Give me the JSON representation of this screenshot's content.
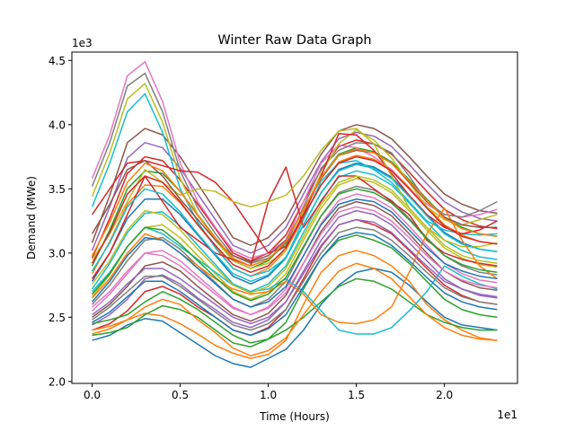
{
  "chart_data": {
    "type": "line",
    "title": "Winter Raw Data Graph",
    "xlabel": "Time (Hours)",
    "ylabel": "Demand (MWe)",
    "x_offset_label": "1e1",
    "y_offset_label": "1e3",
    "xlim": [
      -1.15,
      24.15
    ],
    "ylim": [
      1.985,
      4.565
    ],
    "x_ticks": [
      {
        "value": 0.0,
        "label": "0.0"
      },
      {
        "value": 5.0,
        "label": "0.5"
      },
      {
        "value": 10.0,
        "label": "1.0"
      },
      {
        "value": 15.0,
        "label": "1.5"
      },
      {
        "value": 20.0,
        "label": "2.0"
      }
    ],
    "y_ticks": [
      {
        "value": 2.0,
        "label": "2.0"
      },
      {
        "value": 2.5,
        "label": "2.5"
      },
      {
        "value": 3.0,
        "label": "3.0"
      },
      {
        "value": 3.5,
        "label": "3.5"
      },
      {
        "value": 4.0,
        "label": "4.0"
      },
      {
        "value": 4.5,
        "label": "4.5"
      }
    ],
    "grid": false,
    "legend": "none",
    "x": [
      0,
      1,
      2,
      3,
      4,
      5,
      6,
      7,
      8,
      9,
      10,
      11,
      12,
      13,
      14,
      15,
      16,
      17,
      18,
      19,
      20,
      21,
      22,
      23
    ],
    "series": [
      {
        "color": "#1f77b4",
        "values": [
          2.32,
          2.36,
          2.44,
          2.49,
          2.47,
          2.38,
          2.29,
          2.2,
          2.14,
          2.11,
          2.18,
          2.25,
          2.4,
          2.6,
          2.75,
          2.85,
          2.88,
          2.85,
          2.75,
          2.62,
          2.5,
          2.44,
          2.42,
          2.4
        ]
      },
      {
        "color": "#ff7f0e",
        "values": [
          2.37,
          2.41,
          2.48,
          2.53,
          2.51,
          2.45,
          2.37,
          2.28,
          2.22,
          2.18,
          2.21,
          2.32,
          2.6,
          2.85,
          2.98,
          3.02,
          2.98,
          2.9,
          2.78,
          2.6,
          2.48,
          2.4,
          2.34,
          2.32
        ]
      },
      {
        "color": "#2ca02c",
        "values": [
          2.36,
          2.38,
          2.42,
          2.52,
          2.59,
          2.56,
          2.5,
          2.4,
          2.3,
          2.27,
          2.33,
          2.46,
          2.72,
          2.96,
          3.1,
          3.14,
          3.1,
          3.04,
          2.92,
          2.78,
          2.64,
          2.56,
          2.52,
          2.5
        ]
      },
      {
        "color": "#d62728",
        "values": [
          2.4,
          2.45,
          2.55,
          2.7,
          2.74,
          2.68,
          2.58,
          2.5,
          2.4,
          2.36,
          2.42,
          2.56,
          2.8,
          3.05,
          3.22,
          3.26,
          3.22,
          3.15,
          3.02,
          2.88,
          2.75,
          2.67,
          2.62,
          2.6
        ]
      },
      {
        "color": "#9467bd",
        "values": [
          2.44,
          2.52,
          2.64,
          2.8,
          2.83,
          2.76,
          2.65,
          2.56,
          2.46,
          2.42,
          2.48,
          2.62,
          2.86,
          3.1,
          3.28,
          3.33,
          3.3,
          3.22,
          3.08,
          2.94,
          2.8,
          2.72,
          2.67,
          2.65
        ]
      },
      {
        "color": "#8c564b",
        "values": [
          2.5,
          2.6,
          2.74,
          2.9,
          2.93,
          2.86,
          2.74,
          2.63,
          2.52,
          2.47,
          2.53,
          2.67,
          2.92,
          3.17,
          3.35,
          3.4,
          3.37,
          3.29,
          3.15,
          3.0,
          2.86,
          2.78,
          2.73,
          2.71
        ]
      },
      {
        "color": "#e377c2",
        "values": [
          2.55,
          2.68,
          2.84,
          3.0,
          3.02,
          2.94,
          2.82,
          2.7,
          2.58,
          2.52,
          2.58,
          2.72,
          2.98,
          3.23,
          3.41,
          3.46,
          3.43,
          3.35,
          3.21,
          3.06,
          2.92,
          2.84,
          2.79,
          2.77
        ]
      },
      {
        "color": "#7f7f7f",
        "values": [
          2.6,
          2.75,
          2.94,
          3.1,
          3.12,
          3.03,
          2.9,
          2.77,
          2.64,
          2.58,
          2.64,
          2.78,
          3.04,
          3.29,
          3.47,
          3.52,
          3.49,
          3.41,
          3.27,
          3.12,
          2.98,
          2.9,
          2.85,
          2.83
        ]
      },
      {
        "color": "#bcbd22",
        "values": [
          2.66,
          2.83,
          3.05,
          3.2,
          3.22,
          3.12,
          2.98,
          2.84,
          2.7,
          2.64,
          2.7,
          2.84,
          3.1,
          3.35,
          3.53,
          3.58,
          3.55,
          3.47,
          3.33,
          3.18,
          3.04,
          2.96,
          2.91,
          2.89
        ]
      },
      {
        "color": "#17becf",
        "values": [
          2.72,
          2.92,
          3.16,
          3.31,
          3.32,
          3.21,
          3.06,
          2.91,
          2.76,
          2.7,
          2.76,
          2.9,
          3.16,
          3.41,
          3.59,
          3.64,
          3.61,
          3.53,
          3.39,
          3.24,
          3.1,
          3.02,
          2.97,
          2.95
        ]
      },
      {
        "color": "#1f77b4",
        "values": [
          2.78,
          3.0,
          3.27,
          3.42,
          3.42,
          3.3,
          3.14,
          2.98,
          2.82,
          2.76,
          2.82,
          2.96,
          3.22,
          3.47,
          3.65,
          3.7,
          3.67,
          3.59,
          3.45,
          3.3,
          3.16,
          3.08,
          3.03,
          3.01
        ]
      },
      {
        "color": "#ff7f0e",
        "values": [
          2.84,
          3.09,
          3.38,
          3.53,
          3.52,
          3.39,
          3.22,
          3.05,
          2.88,
          2.82,
          2.88,
          3.02,
          3.28,
          3.53,
          3.71,
          3.76,
          3.73,
          3.65,
          3.51,
          3.36,
          3.22,
          3.14,
          3.09,
          3.07
        ]
      },
      {
        "color": "#2ca02c",
        "values": [
          2.9,
          3.18,
          3.5,
          3.64,
          3.62,
          3.48,
          3.3,
          3.12,
          2.94,
          2.88,
          2.94,
          3.08,
          3.34,
          3.59,
          3.77,
          3.82,
          3.79,
          3.71,
          3.57,
          3.42,
          3.28,
          3.2,
          3.15,
          3.13
        ]
      },
      {
        "color": "#d62728",
        "values": [
          2.96,
          3.27,
          3.62,
          3.75,
          3.72,
          3.57,
          3.38,
          3.19,
          3.0,
          2.94,
          3.0,
          3.14,
          3.4,
          3.65,
          3.83,
          3.88,
          3.85,
          3.77,
          3.63,
          3.48,
          3.34,
          3.26,
          3.21,
          3.19
        ]
      },
      {
        "color": "#9467bd",
        "values": [
          3.02,
          3.36,
          3.74,
          3.86,
          3.82,
          3.66,
          3.46,
          3.26,
          3.06,
          3.0,
          3.06,
          3.2,
          3.46,
          3.71,
          3.89,
          3.94,
          3.91,
          3.83,
          3.69,
          3.54,
          3.4,
          3.32,
          3.27,
          3.25
        ]
      },
      {
        "color": "#8c564b",
        "values": [
          3.08,
          3.45,
          3.86,
          3.97,
          3.92,
          3.75,
          3.54,
          3.33,
          3.12,
          3.06,
          3.12,
          3.26,
          3.52,
          3.77,
          3.95,
          4.0,
          3.97,
          3.89,
          3.75,
          3.6,
          3.46,
          3.38,
          3.33,
          3.31
        ]
      },
      {
        "color": "#e377c2",
        "values": [
          3.58,
          3.92,
          4.38,
          4.49,
          4.18,
          3.7,
          3.4,
          3.2,
          3.02,
          2.96,
          3.0,
          3.1,
          3.4,
          3.7,
          3.84,
          3.82,
          3.75,
          3.65,
          3.5,
          3.38,
          3.3,
          3.28,
          3.3,
          3.34
        ]
      },
      {
        "color": "#7f7f7f",
        "values": [
          3.52,
          3.86,
          4.3,
          4.4,
          4.1,
          3.64,
          3.35,
          3.15,
          2.98,
          2.92,
          2.96,
          3.06,
          3.36,
          3.66,
          3.8,
          3.86,
          3.85,
          3.78,
          3.6,
          3.4,
          3.3,
          3.28,
          3.33,
          3.4
        ]
      },
      {
        "color": "#bcbd22",
        "values": [
          3.44,
          3.78,
          4.2,
          4.32,
          4.02,
          3.58,
          3.3,
          3.1,
          2.94,
          2.88,
          2.92,
          3.02,
          3.32,
          3.62,
          3.85,
          3.96,
          3.88,
          3.74,
          3.55,
          3.36,
          3.26,
          3.22,
          3.26,
          3.3
        ]
      },
      {
        "color": "#17becf",
        "values": [
          3.36,
          3.7,
          4.1,
          4.24,
          3.94,
          3.5,
          3.24,
          3.04,
          2.88,
          2.82,
          2.86,
          2.96,
          3.26,
          3.56,
          3.7,
          3.72,
          3.65,
          3.55,
          3.4,
          3.25,
          3.18,
          3.15,
          3.14,
          3.15
        ]
      },
      {
        "color": "#d62728",
        "values": [
          3.3,
          3.5,
          3.7,
          3.72,
          3.68,
          3.64,
          3.63,
          3.55,
          3.4,
          3.2,
          3.0,
          3.05,
          3.3,
          3.6,
          3.93,
          3.92,
          3.8,
          3.62,
          3.45,
          3.3,
          3.2,
          3.15,
          3.18,
          3.25
        ]
      },
      {
        "color": "#d62728",
        "values": [
          2.8,
          3.0,
          3.3,
          3.6,
          3.4,
          3.2,
          3.1,
          3.0,
          2.95,
          2.9,
          3.4,
          3.67,
          3.2,
          3.4,
          3.6,
          3.6,
          3.5,
          3.4,
          3.3,
          3.1,
          3.0,
          2.95,
          2.92,
          2.9
        ]
      },
      {
        "color": "#bcbd22",
        "values": [
          2.95,
          3.15,
          3.4,
          3.65,
          3.55,
          3.45,
          3.5,
          3.48,
          3.4,
          3.36,
          3.4,
          3.45,
          3.6,
          3.8,
          3.95,
          3.97,
          3.85,
          3.6,
          3.35,
          3.2,
          3.1,
          3.05,
          3.05,
          3.08
        ]
      },
      {
        "color": "#2ca02c",
        "values": [
          2.45,
          2.48,
          2.52,
          2.62,
          2.7,
          2.64,
          2.56,
          2.46,
          2.36,
          2.3,
          2.33,
          2.4,
          2.5,
          2.62,
          2.74,
          2.8,
          2.78,
          2.72,
          2.62,
          2.52,
          2.46,
          2.42,
          2.4,
          2.4
        ]
      },
      {
        "color": "#ff7f0e",
        "values": [
          2.4,
          2.43,
          2.48,
          2.58,
          2.64,
          2.6,
          2.48,
          2.38,
          2.26,
          2.2,
          2.24,
          2.34,
          2.52,
          2.7,
          2.86,
          2.92,
          2.88,
          2.8,
          2.66,
          2.52,
          2.42,
          2.36,
          2.33,
          2.32
        ]
      },
      {
        "color": "#17becf",
        "values": [
          2.7,
          2.85,
          3.05,
          3.2,
          3.15,
          3.05,
          2.95,
          2.85,
          2.75,
          2.7,
          2.72,
          2.8,
          2.7,
          2.55,
          2.4,
          2.37,
          2.37,
          2.42,
          2.55,
          2.7,
          2.9,
          2.82,
          2.76,
          2.72
        ]
      },
      {
        "color": "#ff7f0e",
        "values": [
          2.65,
          2.8,
          3.0,
          3.15,
          3.1,
          3.0,
          2.9,
          2.8,
          2.72,
          2.68,
          2.7,
          2.78,
          2.68,
          2.52,
          2.46,
          2.45,
          2.48,
          2.58,
          2.85,
          3.15,
          3.35,
          3.1,
          2.9,
          2.8
        ]
      },
      {
        "color": "#8c564b",
        "values": [
          3.15,
          3.38,
          3.65,
          3.72,
          3.6,
          3.42,
          3.26,
          3.1,
          2.98,
          2.93,
          2.98,
          3.1,
          3.34,
          3.58,
          3.76,
          3.8,
          3.78,
          3.7,
          3.55,
          3.4,
          3.28,
          3.22,
          3.2,
          3.2
        ]
      },
      {
        "color": "#1f77b4",
        "values": [
          2.62,
          2.78,
          2.98,
          3.12,
          3.1,
          3.0,
          2.88,
          2.76,
          2.64,
          2.58,
          2.62,
          2.74,
          2.98,
          3.22,
          3.38,
          3.42,
          3.4,
          3.32,
          3.18,
          3.04,
          2.92,
          2.86,
          2.82,
          2.8
        ]
      },
      {
        "color": "#9467bd",
        "values": [
          2.52,
          2.62,
          2.76,
          2.88,
          2.88,
          2.8,
          2.7,
          2.6,
          2.5,
          2.45,
          2.5,
          2.62,
          2.84,
          3.06,
          3.22,
          3.26,
          3.24,
          3.16,
          3.03,
          2.9,
          2.78,
          2.72,
          2.68,
          2.66
        ]
      },
      {
        "color": "#e377c2",
        "values": [
          2.58,
          2.7,
          2.86,
          3.0,
          2.98,
          2.9,
          2.79,
          2.68,
          2.57,
          2.52,
          2.57,
          2.69,
          2.92,
          3.15,
          3.32,
          3.36,
          3.33,
          3.25,
          3.12,
          2.98,
          2.86,
          2.79,
          2.75,
          2.73
        ]
      },
      {
        "color": "#7f7f7f",
        "values": [
          2.48,
          2.58,
          2.7,
          2.82,
          2.82,
          2.74,
          2.64,
          2.54,
          2.44,
          2.4,
          2.45,
          2.56,
          2.78,
          3.0,
          3.16,
          3.2,
          3.18,
          3.1,
          2.98,
          2.85,
          2.73,
          2.66,
          2.62,
          2.6
        ]
      },
      {
        "color": "#bcbd22",
        "values": [
          2.76,
          2.94,
          3.18,
          3.33,
          3.3,
          3.18,
          3.03,
          2.89,
          2.75,
          2.69,
          2.74,
          2.88,
          3.13,
          3.38,
          3.55,
          3.6,
          3.57,
          3.49,
          3.35,
          3.2,
          3.06,
          2.98,
          2.94,
          2.92
        ]
      },
      {
        "color": "#17becf",
        "values": [
          2.86,
          3.08,
          3.36,
          3.5,
          3.46,
          3.32,
          3.15,
          2.99,
          2.84,
          2.78,
          2.83,
          2.97,
          3.22,
          3.47,
          3.64,
          3.69,
          3.66,
          3.58,
          3.44,
          3.29,
          3.15,
          3.07,
          3.03,
          3.01
        ]
      },
      {
        "color": "#2ca02c",
        "values": [
          2.68,
          2.84,
          3.05,
          3.2,
          3.18,
          3.07,
          2.94,
          2.81,
          2.69,
          2.63,
          2.68,
          2.81,
          3.05,
          3.29,
          3.46,
          3.5,
          3.47,
          3.39,
          3.26,
          3.11,
          2.98,
          2.91,
          2.87,
          2.85
        ]
      },
      {
        "color": "#d62728",
        "values": [
          2.92,
          3.16,
          3.46,
          3.6,
          3.55,
          3.4,
          3.22,
          3.06,
          2.91,
          2.85,
          2.9,
          3.04,
          3.29,
          3.53,
          3.7,
          3.75,
          3.72,
          3.64,
          3.5,
          3.35,
          3.21,
          3.13,
          3.09,
          3.07
        ]
      },
      {
        "color": "#1f77b4",
        "values": [
          2.46,
          2.54,
          2.66,
          2.78,
          2.78,
          2.7,
          2.6,
          2.5,
          2.4,
          2.36,
          2.41,
          2.52,
          2.74,
          2.96,
          3.12,
          3.16,
          3.14,
          3.06,
          2.94,
          2.81,
          2.69,
          2.62,
          2.58,
          2.56
        ]
      },
      {
        "color": "#ff7f0e",
        "values": [
          2.98,
          3.24,
          3.55,
          3.7,
          3.64,
          3.48,
          3.29,
          3.12,
          2.96,
          2.9,
          2.95,
          3.09,
          3.34,
          3.59,
          3.76,
          3.81,
          3.78,
          3.7,
          3.56,
          3.41,
          3.27,
          3.19,
          3.15,
          3.13
        ]
      }
    ]
  }
}
